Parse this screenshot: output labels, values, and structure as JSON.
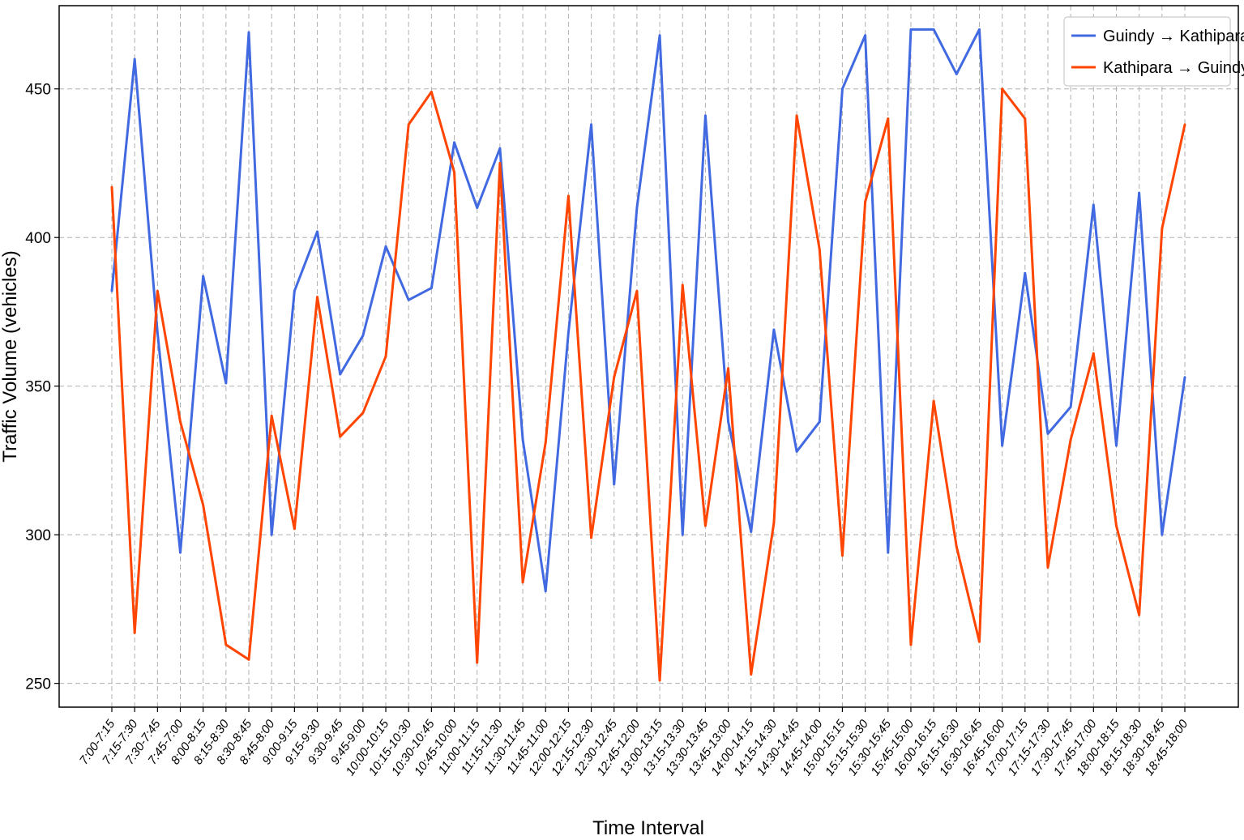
{
  "chart_data": {
    "type": "line",
    "title": "",
    "xlabel": "Time Interval",
    "ylabel": "Traffic Volume (vehicles)",
    "ylim": [
      242,
      478
    ],
    "yticks": [
      250,
      300,
      350,
      400,
      450
    ],
    "grid": true,
    "legend_position": "top-right",
    "categories": [
      "7:00-7:15",
      "7:15-7:30",
      "7:30-7:45",
      "7:45-7:00",
      "8:00-8:15",
      "8:15-8:30",
      "8:30-8:45",
      "8:45-8:00",
      "9:00-9:15",
      "9:15-9:30",
      "9:30-9:45",
      "9:45-9:00",
      "10:00-10:15",
      "10:15-10:30",
      "10:30-10:45",
      "10:45-10:00",
      "11:00-11:15",
      "11:15-11:30",
      "11:30-11:45",
      "11:45-11:00",
      "12:00-12:15",
      "12:15-12:30",
      "12:30-12:45",
      "12:45-12:00",
      "13:00-13:15",
      "13:15-13:30",
      "13:30-13:45",
      "13:45-13:00",
      "14:00-14:15",
      "14:15-14:30",
      "14:30-14:45",
      "14:45-14:00",
      "15:00-15:15",
      "15:15-15:30",
      "15:30-15:45",
      "15:45-15:00",
      "16:00-16:15",
      "16:15-16:30",
      "16:30-16:45",
      "16:45-16:00",
      "17:00-17:15",
      "17:15-17:30",
      "17:30-17:45",
      "17:45-17:00",
      "18:00-18:15",
      "18:15-18:30",
      "18:30-18:45",
      "18:45-18:00"
    ],
    "series": [
      {
        "name": "Guindy → Kathipara",
        "color": "#4169e1",
        "values": [
          382,
          460,
          368,
          294,
          387,
          351,
          469,
          300,
          382,
          402,
          354,
          367,
          397,
          379,
          383,
          432,
          410,
          430,
          332,
          281,
          368,
          438,
          317,
          410,
          468,
          300,
          441,
          338,
          301,
          369,
          328,
          338,
          450,
          468,
          294,
          470,
          470,
          455,
          470,
          330,
          388,
          334,
          343,
          411,
          330,
          415,
          300,
          353
        ]
      },
      {
        "name": "Kathipara → Guindy",
        "color": "#ff4500",
        "values": [
          417,
          267,
          382,
          338,
          310,
          263,
          258,
          340,
          302,
          380,
          333,
          341,
          360,
          438,
          449,
          422,
          257,
          425,
          284,
          331,
          414,
          299,
          353,
          382,
          251,
          384,
          303,
          356,
          253,
          304,
          441,
          396,
          293,
          412,
          440,
          263,
          345,
          296,
          264,
          450,
          440,
          289,
          332,
          361,
          303,
          273,
          403,
          438
        ]
      }
    ]
  }
}
